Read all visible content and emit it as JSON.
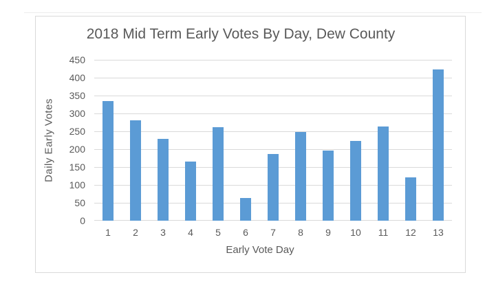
{
  "chart_data": {
    "type": "bar",
    "title": "2018 Mid Term Early Votes By Day, Dew County",
    "xlabel": "Early Vote Day",
    "ylabel": "Daily Early Votes",
    "categories": [
      "1",
      "2",
      "3",
      "4",
      "5",
      "6",
      "7",
      "8",
      "9",
      "10",
      "11",
      "12",
      "13"
    ],
    "values": [
      334,
      280,
      228,
      165,
      262,
      63,
      187,
      249,
      197,
      223,
      263,
      122,
      423
    ],
    "ylim": [
      0,
      450
    ],
    "y_tick_step": 50,
    "y_ticks": [
      0,
      50,
      100,
      150,
      200,
      250,
      300,
      350,
      400,
      450
    ],
    "grid": true,
    "legend": false,
    "colors": {
      "bar_fill": "#5b9bd5",
      "gridline": "#d9d9d9",
      "text": "#595959",
      "frame_border": "#d9d9d9",
      "background": "#ffffff"
    }
  }
}
